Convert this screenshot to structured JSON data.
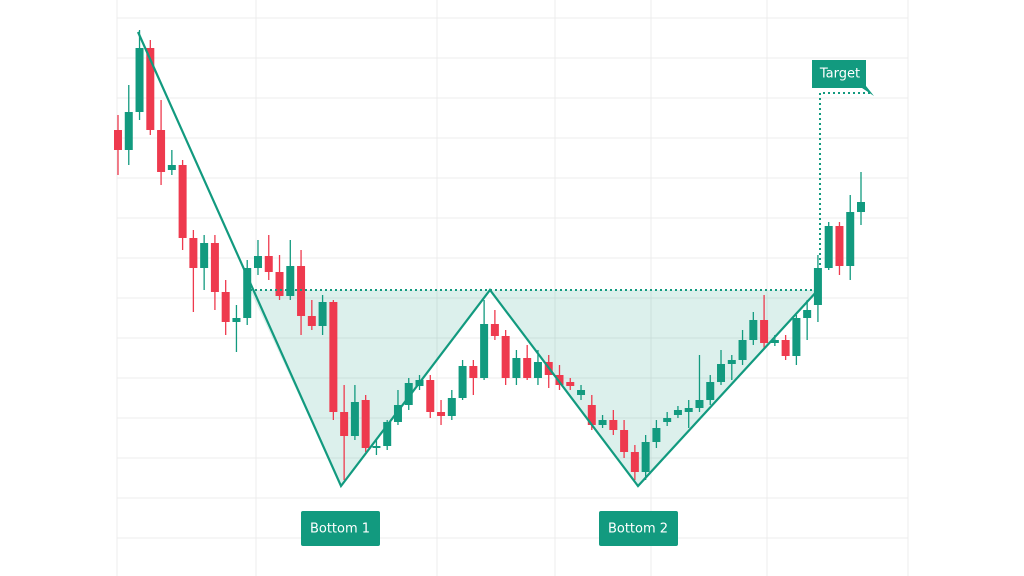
{
  "chart_data": {
    "type": "candlestick",
    "annotations": [
      "Bottom 1",
      "Bottom 2",
      "Target"
    ],
    "up_color": "#129a7f",
    "down_color": "#ee3a4e",
    "ylim": [
      0,
      576
    ],
    "categories": [
      null,
      null,
      null,
      null,
      null,
      null,
      null,
      null,
      null,
      null,
      null,
      null,
      null,
      null,
      null,
      null,
      null,
      null,
      null,
      null,
      null,
      null,
      null,
      null,
      null,
      null,
      null,
      null,
      null,
      null,
      null,
      null,
      null,
      null,
      null,
      null,
      null,
      null,
      null,
      null,
      null,
      null,
      null,
      null,
      null,
      null,
      null,
      null,
      null,
      null,
      null,
      null,
      null,
      null,
      null,
      null,
      null,
      null,
      null,
      null,
      null,
      null,
      null,
      null,
      null,
      null,
      null,
      null,
      null,
      null
    ],
    "open": [
      446,
      426,
      464,
      528,
      446,
      406,
      411,
      338,
      308,
      333,
      284,
      254,
      258,
      308,
      320,
      304,
      280,
      310,
      260,
      250,
      274,
      164,
      140,
      176,
      128,
      130,
      154,
      171,
      190,
      196,
      164,
      160,
      178,
      210,
      198,
      252,
      240,
      198,
      218,
      198,
      214,
      201,
      194,
      181,
      171,
      151,
      156,
      146,
      124,
      104,
      134,
      154,
      161,
      164,
      168,
      176,
      194,
      212,
      216,
      236,
      256,
      233,
      236,
      220,
      258,
      271,
      308,
      350,
      310,
      364
    ],
    "high": [
      461,
      491,
      546,
      536,
      476,
      426,
      416,
      346,
      341,
      341,
      296,
      271,
      316,
      336,
      341,
      321,
      336,
      326,
      276,
      281,
      276,
      191,
      191,
      181,
      136,
      156,
      186,
      198,
      201,
      201,
      176,
      186,
      216,
      216,
      276,
      266,
      246,
      226,
      231,
      226,
      221,
      211,
      198,
      191,
      181,
      161,
      166,
      156,
      131,
      141,
      156,
      164,
      170,
      176,
      221,
      201,
      226,
      221,
      246,
      264,
      281,
      241,
      241,
      261,
      276,
      321,
      354,
      354,
      381,
      404
    ],
    "low": [
      401,
      411,
      456,
      441,
      391,
      401,
      326,
      264,
      286,
      266,
      241,
      224,
      251,
      301,
      296,
      276,
      276,
      241,
      246,
      241,
      156,
      96,
      136,
      124,
      121,
      126,
      151,
      166,
      186,
      158,
      151,
      156,
      176,
      181,
      196,
      236,
      191,
      191,
      196,
      191,
      188,
      186,
      186,
      176,
      146,
      148,
      141,
      118,
      96,
      96,
      128,
      150,
      158,
      148,
      164,
      171,
      191,
      196,
      211,
      231,
      228,
      230,
      216,
      211,
      236,
      254,
      306,
      301,
      296,
      351
    ],
    "close": [
      426,
      464,
      528,
      446,
      404,
      411,
      338,
      308,
      333,
      284,
      254,
      258,
      308,
      320,
      304,
      280,
      310,
      260,
      250,
      274,
      164,
      140,
      174,
      128,
      130,
      154,
      171,
      193,
      196,
      164,
      160,
      178,
      210,
      198,
      252,
      240,
      198,
      218,
      198,
      214,
      201,
      191,
      190,
      186,
      151,
      156,
      146,
      124,
      104,
      134,
      148,
      158,
      166,
      168,
      176,
      194,
      212,
      216,
      236,
      256,
      233,
      236,
      220,
      258,
      266,
      308,
      350,
      310,
      364,
      374
    ]
  }
}
